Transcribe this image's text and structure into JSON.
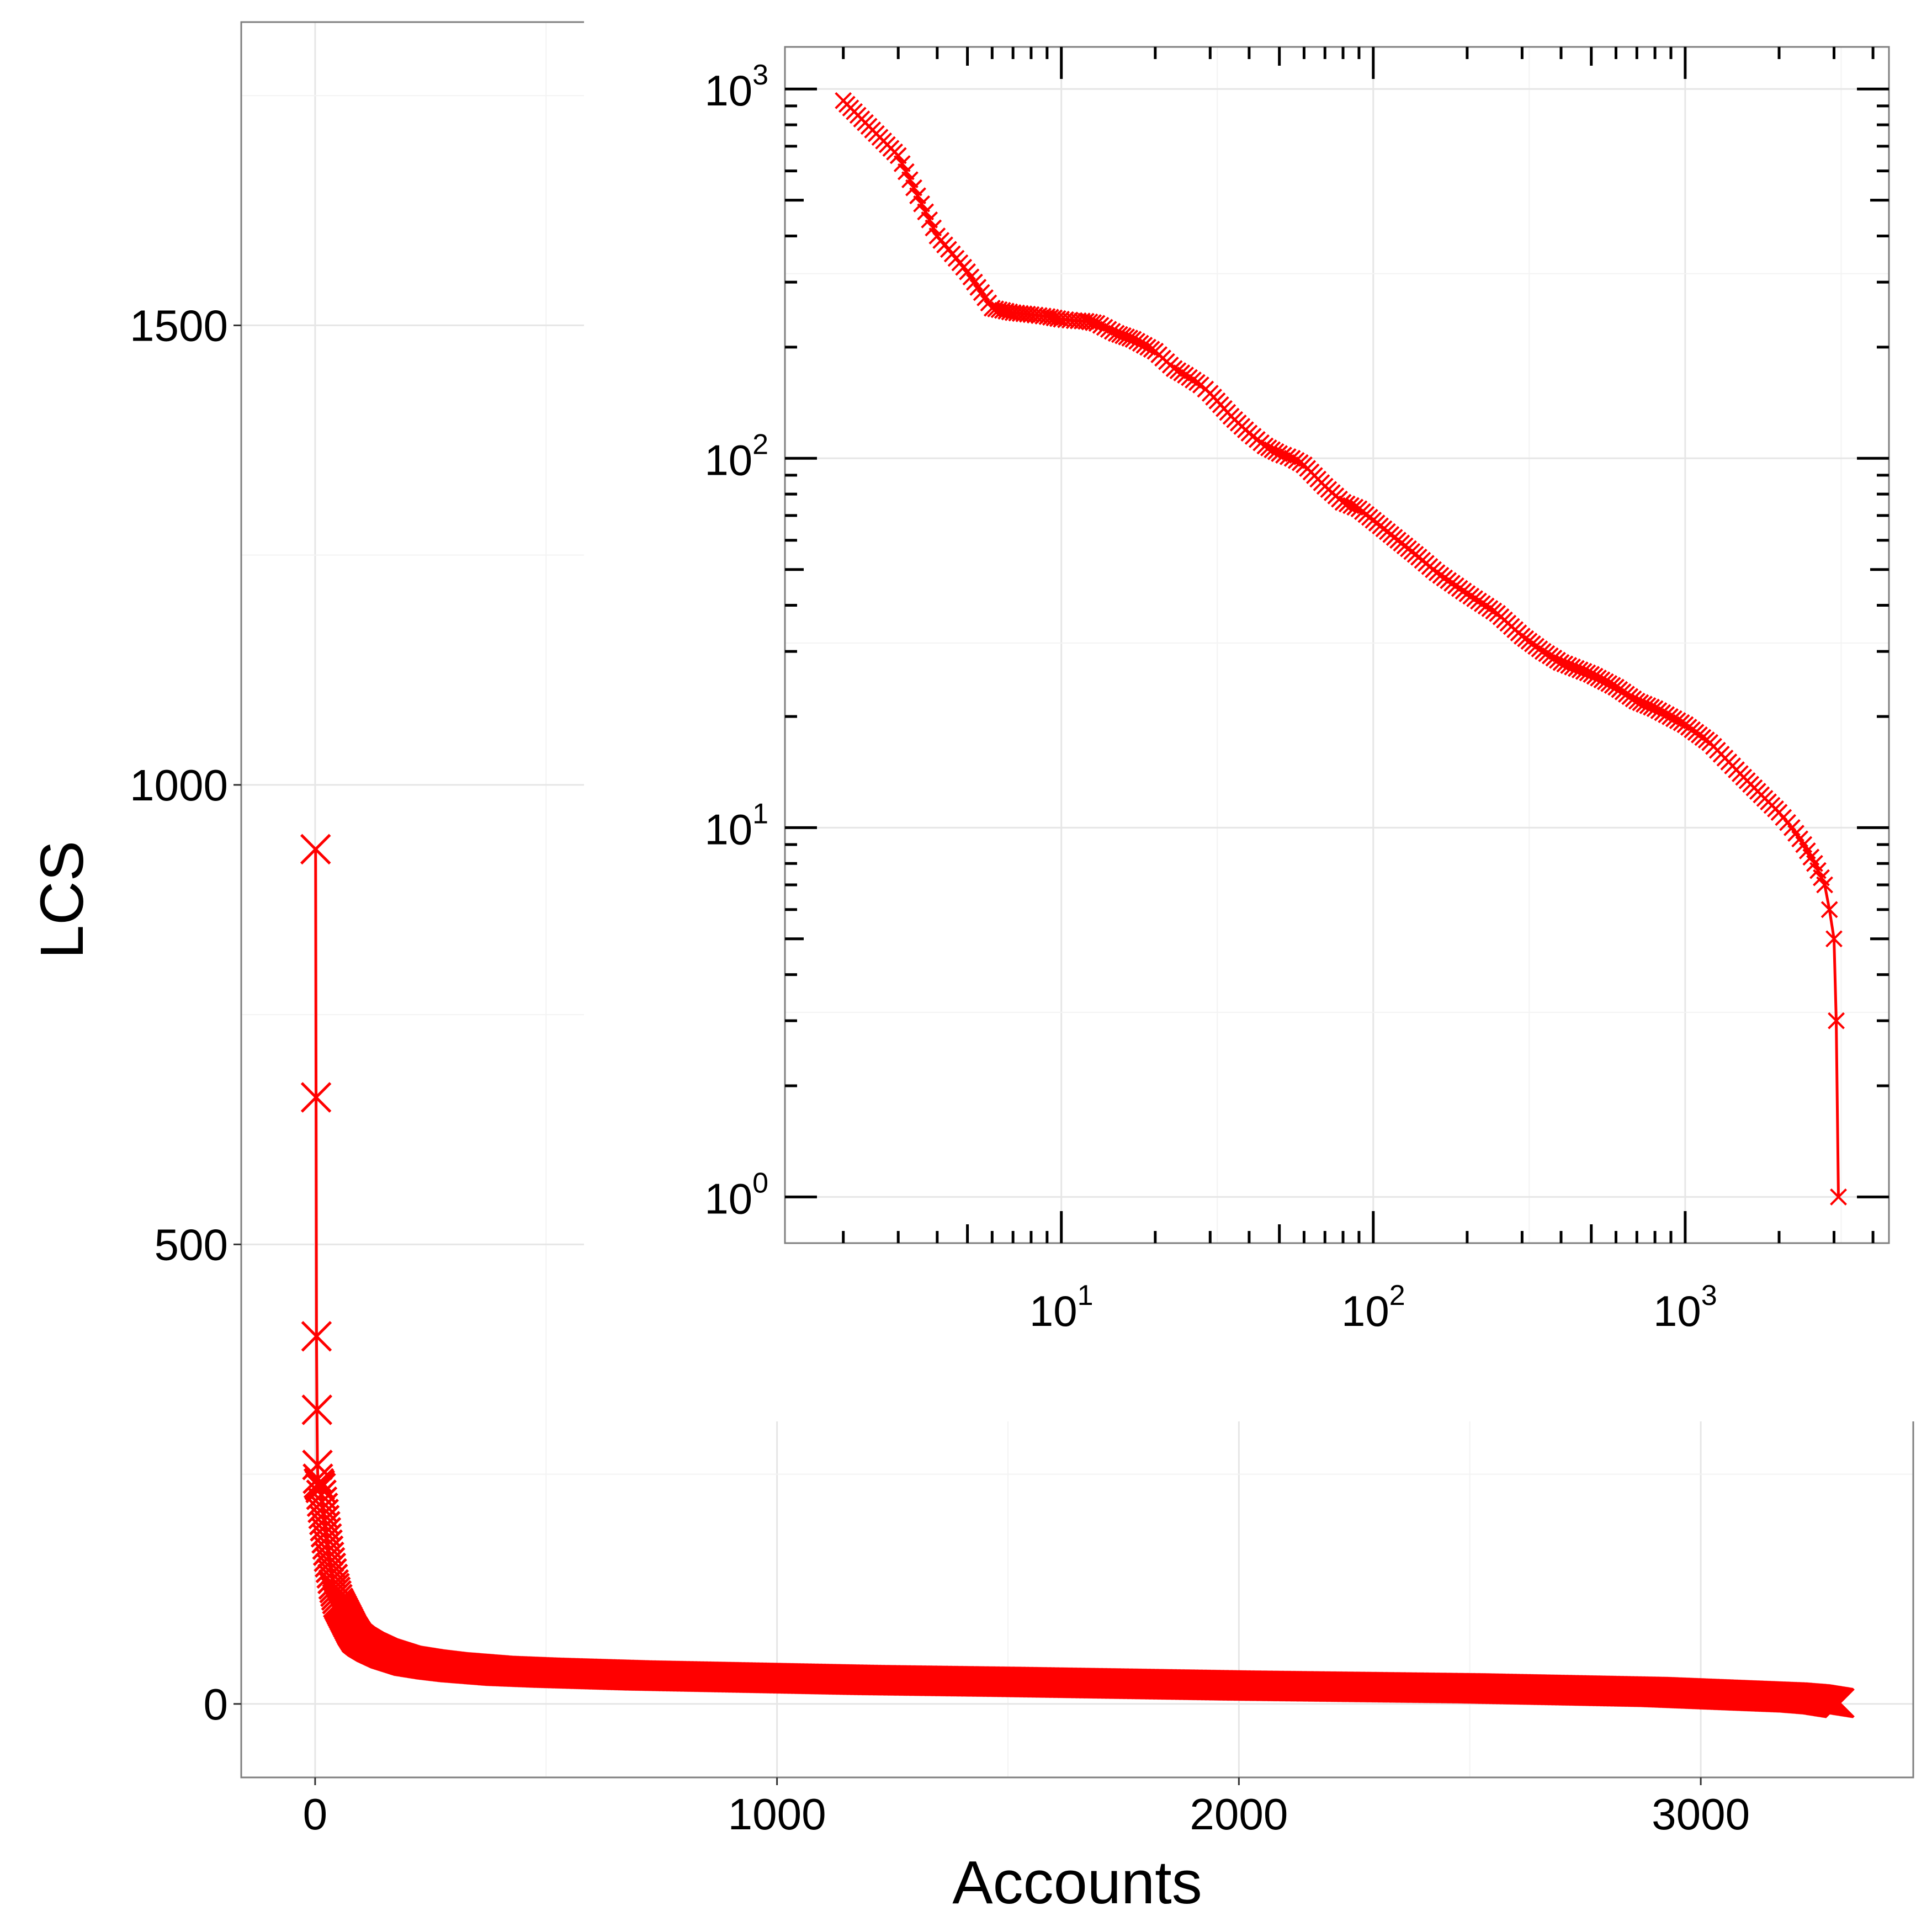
{
  "chart_data": [
    {
      "type": "scatter",
      "panel": "main",
      "xlabel": "Accounts",
      "ylabel": "LCS",
      "xlim": [
        -160,
        3460
      ],
      "ylim": [
        -80,
        1830
      ],
      "xticks": [
        0,
        1000,
        2000,
        3000
      ],
      "xtick_labels": [
        "0",
        "1000",
        "2000",
        "3000"
      ],
      "yticks": [
        0,
        500,
        1000,
        1500
      ],
      "ytick_labels": [
        "0",
        "500",
        "1000",
        "1500"
      ],
      "grid": true,
      "marker": "x",
      "color": "#ff0000",
      "series": [
        {
          "x": [
            1,
            2,
            3,
            4,
            5,
            6,
            8,
            10,
            12,
            15,
            20,
            25,
            30,
            40,
            50,
            60,
            70,
            80,
            90,
            100,
            120,
            150,
            200,
            250,
            300,
            400,
            500,
            700,
            1000,
            1200,
            1500,
            2000,
            2500,
            2700,
            2900,
            3000,
            3100,
            3200,
            3250,
            3300
          ],
          "y": [
            930,
            660,
            400,
            320,
            260,
            245,
            240,
            238,
            235,
            220,
            200,
            180,
            160,
            130,
            110,
            100,
            90,
            80,
            72,
            68,
            62,
            55,
            47,
            43,
            40,
            36,
            34,
            31,
            28,
            26,
            24,
            20,
            17,
            15,
            13,
            11,
            9,
            7,
            5,
            1
          ]
        }
      ]
    },
    {
      "type": "scatter",
      "panel": "inset",
      "log_x": true,
      "log_y": true,
      "xlim": [
        1.3,
        4500
      ],
      "ylim": [
        0.75,
        1300
      ],
      "xticks": [
        10,
        100,
        1000
      ],
      "xtick_labels": [
        {
          "base": "10",
          "exp": "1"
        },
        {
          "base": "10",
          "exp": "2"
        },
        {
          "base": "10",
          "exp": "3"
        }
      ],
      "yticks": [
        1,
        10,
        100,
        1000
      ],
      "ytick_labels": [
        {
          "base": "10",
          "exp": "0"
        },
        {
          "base": "10",
          "exp": "1"
        },
        {
          "base": "10",
          "exp": "2"
        },
        {
          "base": "10",
          "exp": "3"
        }
      ],
      "grid": true,
      "marker": "x",
      "color": "#ff0000",
      "series": [
        {
          "x": [
            2,
            3,
            4,
            5,
            6,
            7,
            8,
            9,
            10,
            11,
            12,
            13,
            15,
            17,
            20,
            23,
            25,
            28,
            30,
            35,
            40,
            45,
            50,
            55,
            60,
            70,
            80,
            90,
            100,
            120,
            140,
            160,
            200,
            250,
            300,
            350,
            400,
            500,
            600,
            700,
            800,
            1000,
            1200,
            1500,
            1800,
            2000,
            2200,
            2400,
            2600,
            2800,
            2900,
            3000,
            3050,
            3100
          ],
          "y": [
            930,
            660,
            400,
            320,
            255,
            248,
            245,
            242,
            238,
            236,
            235,
            232,
            218,
            210,
            195,
            175,
            168,
            158,
            150,
            130,
            117,
            108,
            103,
            100,
            96,
            84,
            76,
            73,
            68,
            60,
            54,
            49,
            43,
            38,
            33,
            30,
            28,
            26,
            24,
            22,
            21,
            19,
            17,
            14,
            12,
            11,
            10,
            9,
            8,
            7,
            6,
            5,
            3,
            1
          ]
        }
      ]
    }
  ]
}
